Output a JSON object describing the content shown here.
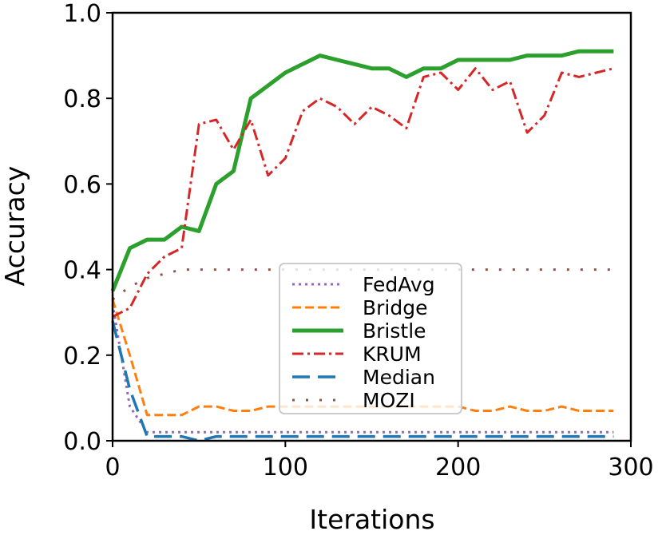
{
  "chart_data": {
    "type": "line",
    "title": "",
    "xlabel": "Iterations",
    "ylabel": "Accuracy",
    "xlim": [
      0,
      300
    ],
    "ylim": [
      0.0,
      1.0
    ],
    "xticks": [
      "0",
      "100",
      "200",
      "300"
    ],
    "yticks": [
      "0.0",
      "0.2",
      "0.4",
      "0.6",
      "0.8",
      "1.0"
    ],
    "grid": false,
    "legend_position": "lower-center",
    "series": [
      {
        "name": "FedAvg",
        "color": "#9467bd",
        "style": "dotted",
        "x": [
          0,
          10,
          20,
          30,
          40,
          50,
          100,
          150,
          200,
          250,
          290
        ],
        "y": [
          0.32,
          0.08,
          0.02,
          0.02,
          0.02,
          0.02,
          0.02,
          0.02,
          0.02,
          0.02,
          0.02
        ]
      },
      {
        "name": "Bridge",
        "color": "#ff7f0e",
        "style": "dashed",
        "x": [
          0,
          10,
          20,
          30,
          40,
          50,
          60,
          70,
          80,
          90,
          100,
          110,
          120,
          130,
          140,
          150,
          160,
          170,
          180,
          190,
          200,
          210,
          220,
          230,
          240,
          250,
          260,
          270,
          280,
          290
        ],
        "y": [
          0.33,
          0.2,
          0.06,
          0.06,
          0.06,
          0.08,
          0.08,
          0.07,
          0.07,
          0.08,
          0.08,
          0.08,
          0.08,
          0.08,
          0.08,
          0.08,
          0.08,
          0.08,
          0.08,
          0.08,
          0.08,
          0.07,
          0.07,
          0.08,
          0.07,
          0.07,
          0.08,
          0.07,
          0.07,
          0.07
        ]
      },
      {
        "name": "Bristle",
        "color": "#2ca02c",
        "style": "solid",
        "x": [
          0,
          10,
          20,
          30,
          40,
          50,
          60,
          70,
          80,
          90,
          100,
          110,
          120,
          130,
          140,
          150,
          160,
          170,
          180,
          190,
          200,
          210,
          220,
          230,
          240,
          250,
          260,
          270,
          280,
          290
        ],
        "y": [
          0.35,
          0.45,
          0.47,
          0.47,
          0.5,
          0.49,
          0.6,
          0.63,
          0.8,
          0.83,
          0.86,
          0.88,
          0.9,
          0.89,
          0.88,
          0.87,
          0.87,
          0.85,
          0.87,
          0.87,
          0.89,
          0.89,
          0.89,
          0.89,
          0.9,
          0.9,
          0.9,
          0.91,
          0.91,
          0.91
        ]
      },
      {
        "name": "KRUM",
        "color": "#d62728",
        "style": "dashdot",
        "x": [
          0,
          10,
          20,
          30,
          40,
          50,
          60,
          70,
          80,
          90,
          100,
          110,
          120,
          130,
          140,
          150,
          160,
          170,
          180,
          190,
          200,
          210,
          220,
          230,
          240,
          250,
          260,
          270,
          280,
          290
        ],
        "y": [
          0.29,
          0.31,
          0.39,
          0.43,
          0.45,
          0.74,
          0.75,
          0.68,
          0.75,
          0.62,
          0.66,
          0.77,
          0.8,
          0.78,
          0.74,
          0.78,
          0.76,
          0.73,
          0.85,
          0.86,
          0.82,
          0.87,
          0.82,
          0.84,
          0.72,
          0.76,
          0.86,
          0.85,
          0.86,
          0.87
        ]
      },
      {
        "name": "Median",
        "color": "#1f77b4",
        "style": "longdash",
        "x": [
          0,
          10,
          20,
          30,
          40,
          50,
          60,
          70,
          100,
          150,
          200,
          250,
          290
        ],
        "y": [
          0.28,
          0.12,
          0.01,
          0.01,
          0.01,
          0.0,
          0.01,
          0.01,
          0.01,
          0.01,
          0.01,
          0.01,
          0.01
        ]
      },
      {
        "name": "MOZI",
        "color": "#8c564b",
        "style": "loosedot",
        "x": [
          0,
          10,
          20,
          30,
          40,
          50,
          100,
          150,
          200,
          250,
          290
        ],
        "y": [
          0.33,
          0.36,
          0.38,
          0.39,
          0.4,
          0.4,
          0.4,
          0.4,
          0.4,
          0.4,
          0.4
        ]
      }
    ]
  }
}
